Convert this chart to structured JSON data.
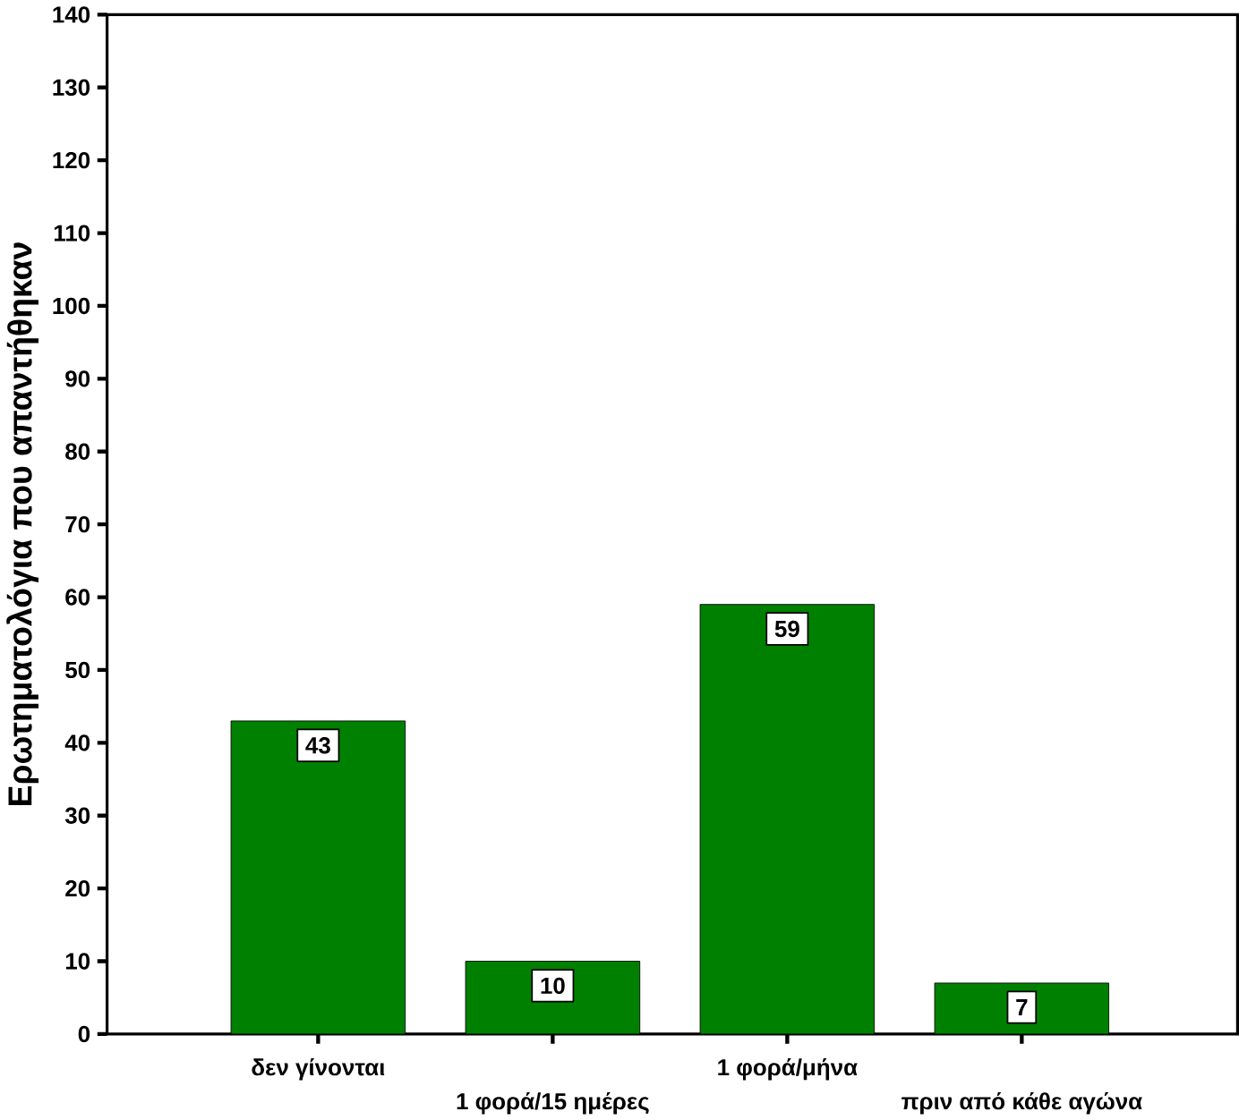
{
  "chart_data": {
    "type": "bar",
    "ylabel": "Ερωτηματολόγια που απαντήθηκαν",
    "categories": [
      "δεν γίνονται",
      "1 φορά/15 ημέρες",
      "1 φορά/μήνα",
      "πριν από κάθε αγώνα"
    ],
    "values": [
      43,
      10,
      59,
      7
    ],
    "color": "#008000",
    "ylim": [
      0,
      140
    ],
    "yticks": [
      0,
      10,
      20,
      30,
      40,
      50,
      60,
      70,
      80,
      90,
      100,
      110,
      120,
      130,
      140
    ],
    "data_labels": true
  }
}
